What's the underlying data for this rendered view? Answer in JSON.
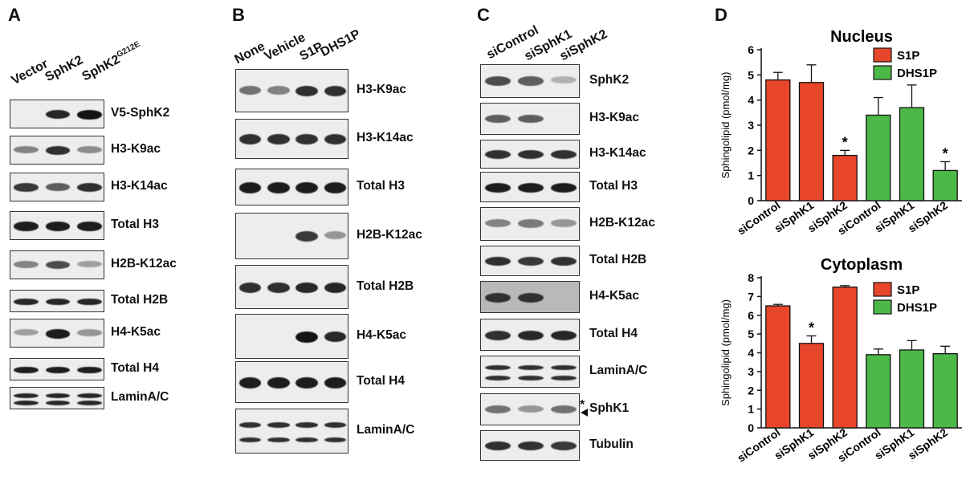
{
  "panels": {
    "A": {
      "letter": "A",
      "lanes": [
        "Vector",
        "SphK2",
        "SphK2"
      ],
      "lane_superscript": "G212E",
      "blots": [
        {
          "label": "V5-SphK2",
          "bands": [
            0,
            0.9,
            1.0
          ]
        },
        {
          "label": "H3-K9ac",
          "bands": [
            0.4,
            0.85,
            0.35
          ]
        },
        {
          "label": "H3-K14ac",
          "bands": [
            0.8,
            0.6,
            0.85
          ]
        },
        {
          "label": "Total H3",
          "bands": [
            0.95,
            0.95,
            0.95
          ]
        },
        {
          "label": "H2B-K12ac",
          "bands": [
            0.4,
            0.7,
            0.25
          ]
        },
        {
          "label": "Total H2B",
          "bands": [
            0.9,
            0.9,
            0.9
          ]
        },
        {
          "label": "H4-K5ac",
          "bands": [
            0.25,
            0.95,
            0.3
          ]
        },
        {
          "label": "Total H4",
          "bands": [
            0.95,
            0.95,
            0.95
          ]
        },
        {
          "label": "LaminA/C",
          "bands": [
            0.9,
            0.9,
            0.9
          ]
        }
      ]
    },
    "B": {
      "letter": "B",
      "lanes": [
        "None",
        "Vehicle",
        "S1P",
        "DHS1P"
      ],
      "blots": [
        {
          "label": "H3-K9ac",
          "bands": [
            0.5,
            0.4,
            0.85,
            0.85
          ]
        },
        {
          "label": "H3-K14ac",
          "bands": [
            0.85,
            0.85,
            0.85,
            0.85
          ]
        },
        {
          "label": "Total H3",
          "bands": [
            0.95,
            0.95,
            0.95,
            0.95
          ]
        },
        {
          "label": "H2B-K12ac",
          "bands": [
            0,
            0,
            0.8,
            0.3
          ]
        },
        {
          "label": "Total H2B",
          "bands": [
            0.85,
            0.85,
            0.9,
            0.9
          ]
        },
        {
          "label": "H4-K5ac",
          "bands": [
            0,
            0,
            1.0,
            0.9
          ]
        },
        {
          "label": "Total H4",
          "bands": [
            0.95,
            0.95,
            0.95,
            0.95
          ]
        },
        {
          "label": "LaminA/C",
          "bands": [
            0.85,
            0.85,
            0.85,
            0.85
          ]
        }
      ]
    },
    "C": {
      "letter": "C",
      "lanes": [
        "siControl",
        "siSphK1",
        "siSphK2"
      ],
      "blots": [
        {
          "label": "SphK2",
          "bands": [
            0.7,
            0.6,
            0.15
          ]
        },
        {
          "label": "H3-K9ac",
          "bands": [
            0.6,
            0.6,
            0
          ]
        },
        {
          "label": "H3-K14ac",
          "bands": [
            0.85,
            0.85,
            0.85
          ]
        },
        {
          "label": "Total H3",
          "bands": [
            0.95,
            0.95,
            0.95
          ]
        },
        {
          "label": "H2B-K12ac",
          "bands": [
            0.4,
            0.45,
            0.3
          ]
        },
        {
          "label": "Total H2B",
          "bands": [
            0.85,
            0.8,
            0.85
          ]
        },
        {
          "label": "H4-K5ac",
          "bands": [
            0.85,
            0.85,
            0
          ]
        },
        {
          "label": "Total H4",
          "bands": [
            0.85,
            0.9,
            0.9
          ]
        },
        {
          "label": "LaminA/C",
          "bands": [
            0.85,
            0.85,
            0.85
          ]
        },
        {
          "label": "SphK1",
          "bands": [
            0.5,
            0.3,
            0.5
          ]
        },
        {
          "label": "Tubulin",
          "bands": [
            0.85,
            0.85,
            0.8
          ]
        }
      ],
      "sphk1_marker": "*"
    },
    "D": {
      "letter": "D"
    }
  },
  "chart_data": [
    {
      "type": "bar",
      "title": "Nucleus",
      "ylabel": "Sphingolipid (pmol/mg)",
      "ylim": [
        0,
        6
      ],
      "yticks": [
        "0",
        "1",
        "2",
        "3",
        "4",
        "5",
        "6"
      ],
      "categories": [
        "siControl",
        "siSphK1",
        "siSphK2",
        "siControl",
        "siSphK1",
        "siSphK2"
      ],
      "series": [
        {
          "name": "S1P",
          "color": "#e8462a",
          "values": [
            4.8,
            4.7,
            1.8,
            null,
            null,
            null
          ],
          "errors": [
            0.3,
            0.7,
            0.2,
            null,
            null,
            null
          ]
        },
        {
          "name": "DHS1P",
          "color": "#4cb848",
          "values": [
            null,
            null,
            null,
            3.4,
            3.7,
            1.2
          ],
          "errors": [
            null,
            null,
            null,
            0.7,
            0.9,
            0.35
          ]
        }
      ],
      "annotations": [
        {
          "index": 2,
          "text": "*"
        },
        {
          "index": 5,
          "text": "*"
        }
      ]
    },
    {
      "type": "bar",
      "title": "Cytoplasm",
      "ylabel": "Sphingolipid (pmol/mg)",
      "ylim": [
        0,
        8
      ],
      "yticks": [
        "0",
        "1",
        "2",
        "3",
        "4",
        "5",
        "6",
        "7",
        "8"
      ],
      "categories": [
        "siControl",
        "siSphK1",
        "siSphK2",
        "siControl",
        "siSphK1",
        "siSphK2"
      ],
      "series": [
        {
          "name": "S1P",
          "color": "#e8462a",
          "values": [
            6.5,
            4.5,
            7.5,
            null,
            null,
            null
          ],
          "errors": [
            0.08,
            0.4,
            0.08,
            null,
            null,
            null
          ]
        },
        {
          "name": "DHS1P",
          "color": "#4cb848",
          "values": [
            null,
            null,
            null,
            3.9,
            4.15,
            3.95
          ],
          "errors": [
            null,
            null,
            null,
            0.3,
            0.5,
            0.4
          ]
        }
      ],
      "annotations": [
        {
          "index": 1,
          "text": "*"
        }
      ]
    }
  ]
}
